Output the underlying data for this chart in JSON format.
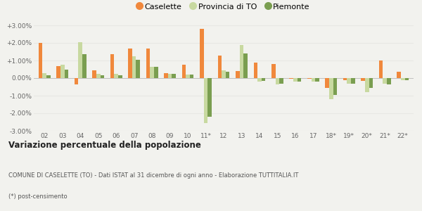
{
  "years": [
    "02",
    "03",
    "04",
    "05",
    "06",
    "07",
    "08",
    "09",
    "10",
    "11*",
    "12",
    "13",
    "14",
    "15",
    "16",
    "17",
    "18*",
    "19*",
    "20*",
    "21*",
    "22*"
  ],
  "caselette": [
    2.0,
    0.7,
    -0.35,
    0.45,
    1.35,
    1.7,
    1.7,
    0.3,
    0.75,
    2.8,
    1.3,
    0.4,
    0.9,
    0.8,
    -0.05,
    -0.05,
    -0.55,
    -0.1,
    -0.15,
    1.0,
    0.35
  ],
  "provincia_to": [
    0.3,
    0.75,
    2.05,
    0.25,
    0.25,
    1.25,
    0.65,
    0.25,
    0.2,
    -2.55,
    0.45,
    1.9,
    -0.2,
    -0.35,
    -0.2,
    -0.2,
    -1.2,
    -0.3,
    -0.8,
    -0.3,
    -0.1
  ],
  "piemonte": [
    0.15,
    0.5,
    1.35,
    0.15,
    0.15,
    1.05,
    0.65,
    0.25,
    0.2,
    -2.2,
    0.35,
    1.4,
    -0.15,
    -0.3,
    -0.2,
    -0.2,
    -0.95,
    -0.3,
    -0.55,
    -0.35,
    -0.1
  ],
  "color_caselette": "#f0883c",
  "color_provincia": "#c8d9a0",
  "color_piemonte": "#7a9e50",
  "background_color": "#f2f2ee",
  "grid_color": "#e8e8e4",
  "ylim": [
    -3.0,
    3.0
  ],
  "yticks": [
    -3.0,
    -2.0,
    -1.0,
    0.0,
    1.0,
    2.0,
    3.0
  ],
  "title": "Variazione percentuale della popolazione",
  "subtitle": "COMUNE DI CASELETTE (TO) - Dati ISTAT al 31 dicembre di ogni anno - Elaborazione TUTTITALIA.IT",
  "footnote": "(*) post-censimento",
  "legend_labels": [
    "Caselette",
    "Provincia di TO",
    "Piemonte"
  ]
}
